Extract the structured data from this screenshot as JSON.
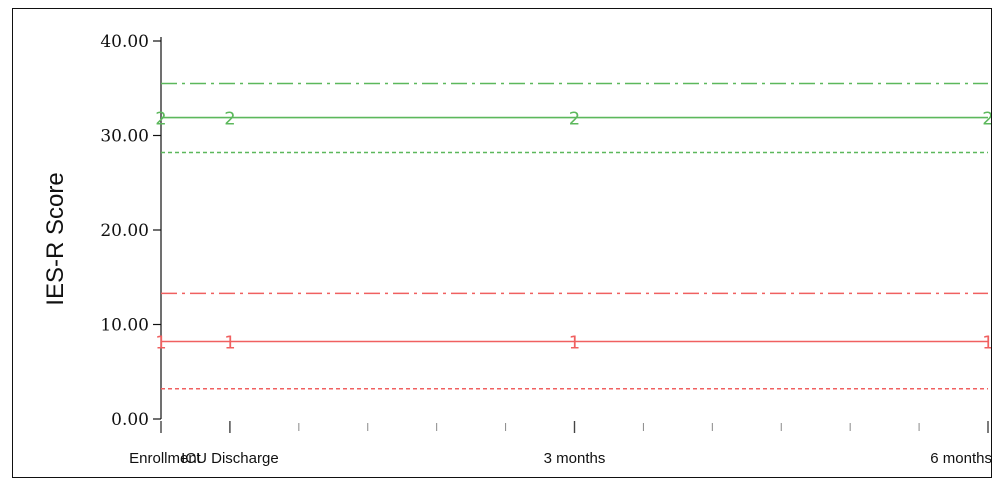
{
  "chart_data": {
    "type": "line",
    "ylabel": "IES-R Score",
    "xlabel": "",
    "ylim": [
      0,
      40
    ],
    "yticks": [
      "0.00",
      "10.00",
      "20.00",
      "30.00",
      "40.00"
    ],
    "categories": [
      "Enrollment",
      "ICU Discharge",
      "3 months",
      "6 months"
    ],
    "x_positions_months": [
      0,
      0.5,
      3,
      6
    ],
    "grid": false,
    "series": [
      {
        "marker": "1",
        "color": "#f06060",
        "values": [
          8.2,
          8.2,
          8.2,
          8.2
        ],
        "upper": 13.3,
        "lower": 3.2
      },
      {
        "marker": "2",
        "color": "#5cb85c",
        "values": [
          31.9,
          31.9,
          31.9,
          31.9
        ],
        "upper": 35.5,
        "lower": 28.2
      }
    ]
  }
}
